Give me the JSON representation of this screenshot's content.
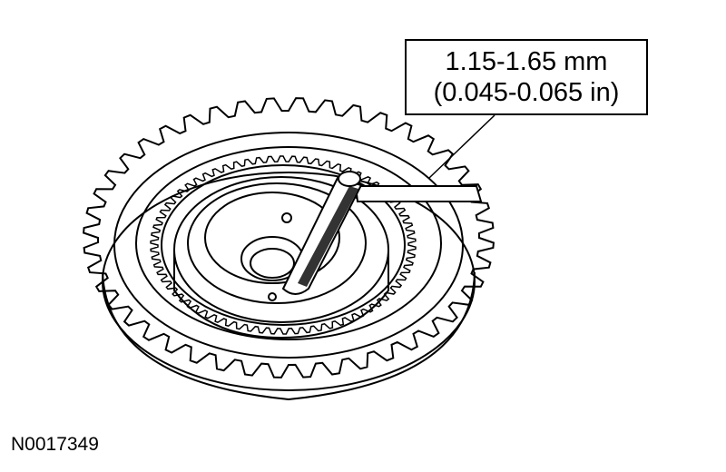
{
  "callout": {
    "metric": "1.15-1.65 mm",
    "imperial": "(0.045-0.065 in)"
  },
  "figure_id": "N0017349",
  "colors": {
    "line": "#000000",
    "background": "#ffffff",
    "shading": "#cfcfcf"
  }
}
